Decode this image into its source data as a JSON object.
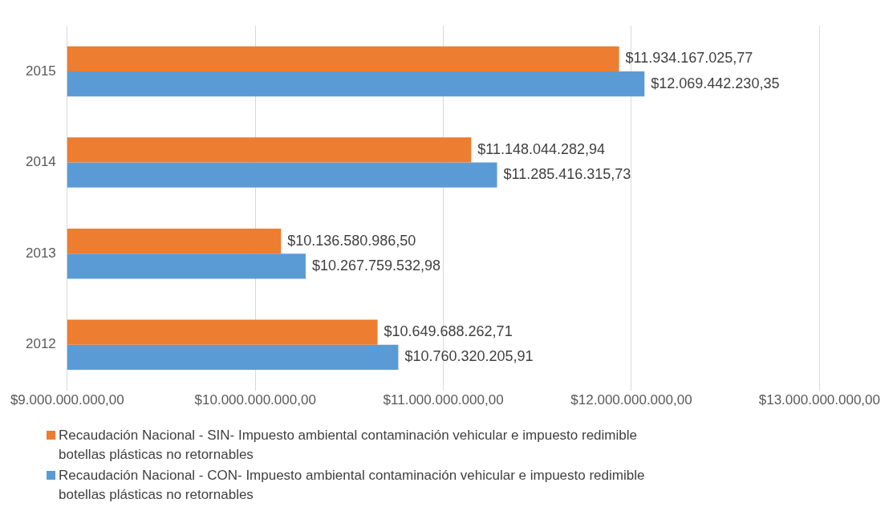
{
  "chart_data": {
    "type": "bar",
    "orientation": "horizontal",
    "categories": [
      "2015",
      "2014",
      "2013",
      "2012"
    ],
    "series": [
      {
        "name": "Recaudación Nacional - SIN- Impuesto ambiental contaminación vehicular e impuesto redimible botellas plásticas no retornables",
        "color": "#ed7d31",
        "values": [
          11934167025.77,
          11148044282.94,
          10136580986.5,
          10649688262.71
        ],
        "value_labels": [
          "$11.934.167.025,77",
          "$11.148.044.282,94",
          "$10.136.580.986,50",
          "$10.649.688.262,71"
        ]
      },
      {
        "name": "Recaudación Nacional - CON- Impuesto ambiental contaminación vehicular e impuesto redimible botellas plásticas no retornables",
        "color": "#5b9bd5",
        "values": [
          12069442230.35,
          11285416315.73,
          10267759532.98,
          10760320205.91
        ],
        "value_labels": [
          "$12.069.442.230,35",
          "$11.285.416.315,73",
          "$10.267.759.532,98",
          "$10.760.320.205,91"
        ]
      }
    ],
    "xlim": [
      9000000000,
      13000000000
    ],
    "xticks": [
      {
        "value": 9000000000,
        "label": "$9.000.000.000,00"
      },
      {
        "value": 10000000000,
        "label": "$10.000.000.000,00"
      },
      {
        "value": 11000000000,
        "label": "$11.000.000.000,00"
      },
      {
        "value": 12000000000,
        "label": "$12.000.000.000,00"
      },
      {
        "value": 13000000000,
        "label": "$13.000.000.000,00"
      }
    ],
    "grid": "x",
    "legend": "bottom left"
  }
}
